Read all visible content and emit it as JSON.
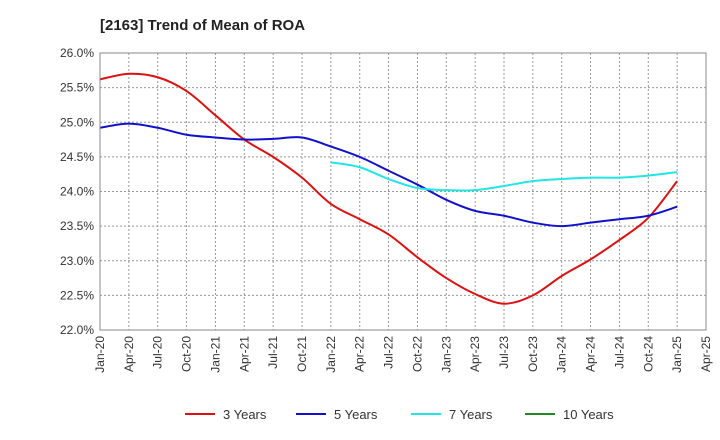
{
  "chart_data": {
    "type": "line",
    "title": "[2163]  Trend of Mean of ROA",
    "xlabel": "",
    "ylabel": "",
    "x_ticks": [
      "Jan-20",
      "Apr-20",
      "Jul-20",
      "Oct-20",
      "Jan-21",
      "Apr-21",
      "Jul-21",
      "Oct-21",
      "Jan-22",
      "Apr-22",
      "Jul-22",
      "Oct-22",
      "Jan-23",
      "Apr-23",
      "Jul-23",
      "Oct-23",
      "Jan-24",
      "Apr-24",
      "Jul-24",
      "Oct-24",
      "Jan-25",
      "Apr-25"
    ],
    "y_ticks": [
      "22.0%",
      "22.5%",
      "23.0%",
      "23.5%",
      "24.0%",
      "24.5%",
      "25.0%",
      "25.5%",
      "26.0%"
    ],
    "ylim": [
      22.0,
      26.0
    ],
    "y_unit": "%",
    "grid": true,
    "legend_position": "bottom",
    "series": [
      {
        "name": "3 Years",
        "color": "#dd1111",
        "points": [
          [
            "Jan-20",
            25.62
          ],
          [
            "Apr-20",
            25.7
          ],
          [
            "Jul-20",
            25.65
          ],
          [
            "Oct-20",
            25.45
          ],
          [
            "Jan-21",
            25.1
          ],
          [
            "Apr-21",
            24.75
          ],
          [
            "Jul-21",
            24.5
          ],
          [
            "Oct-21",
            24.2
          ],
          [
            "Jan-22",
            23.82
          ],
          [
            "Apr-22",
            23.6
          ],
          [
            "Jul-22",
            23.38
          ],
          [
            "Oct-22",
            23.05
          ],
          [
            "Jan-23",
            22.75
          ],
          [
            "Apr-23",
            22.52
          ],
          [
            "Jul-23",
            22.38
          ],
          [
            "Oct-23",
            22.5
          ],
          [
            "Jan-24",
            22.78
          ],
          [
            "Apr-24",
            23.02
          ],
          [
            "Jul-24",
            23.3
          ],
          [
            "Oct-24",
            23.62
          ],
          [
            "Jan-25",
            24.15
          ]
        ]
      },
      {
        "name": "5 Years",
        "color": "#1111cc",
        "points": [
          [
            "Jan-20",
            24.92
          ],
          [
            "Apr-20",
            24.98
          ],
          [
            "Jul-20",
            24.92
          ],
          [
            "Oct-20",
            24.82
          ],
          [
            "Jan-21",
            24.78
          ],
          [
            "Apr-21",
            24.75
          ],
          [
            "Jul-21",
            24.76
          ],
          [
            "Oct-21",
            24.78
          ],
          [
            "Jan-22",
            24.65
          ],
          [
            "Apr-22",
            24.5
          ],
          [
            "Jul-22",
            24.3
          ],
          [
            "Oct-22",
            24.1
          ],
          [
            "Jan-23",
            23.88
          ],
          [
            "Apr-23",
            23.72
          ],
          [
            "Jul-23",
            23.65
          ],
          [
            "Oct-23",
            23.55
          ],
          [
            "Jan-24",
            23.5
          ],
          [
            "Apr-24",
            23.55
          ],
          [
            "Jul-24",
            23.6
          ],
          [
            "Oct-24",
            23.65
          ],
          [
            "Jan-25",
            23.78
          ]
        ]
      },
      {
        "name": "7 Years",
        "color": "#22e5e5",
        "points": [
          [
            "Jan-22",
            24.42
          ],
          [
            "Apr-22",
            24.35
          ],
          [
            "Jul-22",
            24.18
          ],
          [
            "Oct-22",
            24.05
          ],
          [
            "Jan-23",
            24.02
          ],
          [
            "Apr-23",
            24.02
          ],
          [
            "Jul-23",
            24.08
          ],
          [
            "Oct-23",
            24.15
          ],
          [
            "Jan-24",
            24.18
          ],
          [
            "Apr-24",
            24.2
          ],
          [
            "Jul-24",
            24.2
          ],
          [
            "Oct-24",
            24.23
          ],
          [
            "Jan-25",
            24.28
          ]
        ]
      },
      {
        "name": "10 Years",
        "color": "#228822",
        "points": []
      }
    ]
  }
}
